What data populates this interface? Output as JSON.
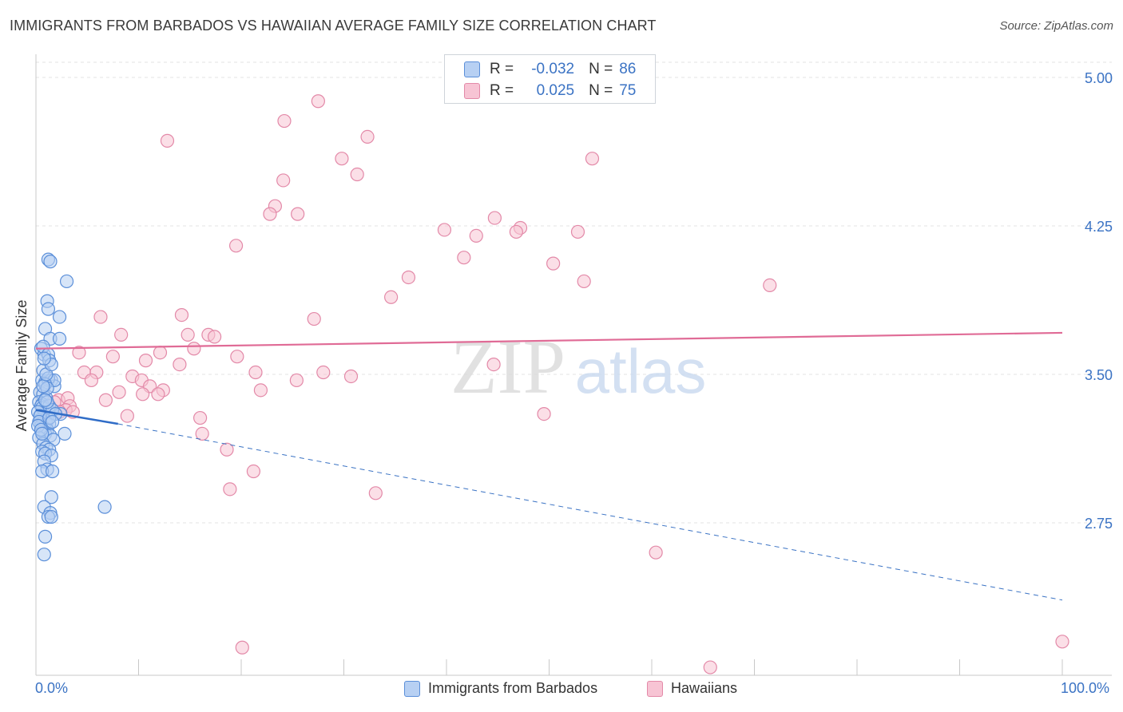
{
  "header": {
    "title": "IMMIGRANTS FROM BARBADOS VS HAWAIIAN AVERAGE FAMILY SIZE CORRELATION CHART",
    "source": "Source: ZipAtlas.com"
  },
  "watermark": {
    "zip": "ZIP",
    "atlas": "atlas"
  },
  "stats": [
    {
      "r_label": "R =",
      "r_value": "-0.032",
      "n_label": "N =",
      "n_value": "86",
      "color": "#5b8fd9",
      "fill": "#b7d0f3"
    },
    {
      "r_label": "R =",
      "r_value": "0.025",
      "n_label": "N =",
      "n_value": "75",
      "color": "#e389a8",
      "fill": "#f7c4d4"
    }
  ],
  "legend": [
    {
      "label": "Immigrants from Barbados",
      "color": "#5b8fd9",
      "fill": "#b7d0f3"
    },
    {
      "label": "Hawaiians",
      "color": "#e389a8",
      "fill": "#f7c4d4"
    }
  ],
  "chart_data": {
    "type": "scatter",
    "title": "IMMIGRANTS FROM BARBADOS VS HAWAIIAN AVERAGE FAMILY SIZE CORRELATION CHART",
    "xlabel": "",
    "ylabel": "Average Family Size",
    "xlim": [
      0,
      100
    ],
    "ylim": [
      2.0,
      5.1
    ],
    "x_tick_labels": [
      "0.0%",
      "100.0%"
    ],
    "y_ticks": [
      2.75,
      3.5,
      4.25,
      5.0
    ],
    "y_tick_labels": [
      "2.75",
      "3.50",
      "4.25",
      "5.00"
    ],
    "grid": "horizontal dashed",
    "legend_position": "bottom",
    "series": [
      {
        "name": "Immigrants from Barbados",
        "color": "#5b8fd9",
        "fill": "#b7d0f3",
        "trend": {
          "solid": [
            [
              0,
              3.32
            ],
            [
              8,
              3.25
            ]
          ],
          "dashed": [
            [
              8,
              3.25
            ],
            [
              100,
              2.36
            ]
          ]
        },
        "points": [
          [
            0.5,
            3.63
          ],
          [
            0.8,
            3.6
          ],
          [
            0.6,
            3.47
          ],
          [
            0.9,
            3.46
          ],
          [
            1.2,
            3.47
          ],
          [
            1.5,
            3.47
          ],
          [
            1.8,
            3.44
          ],
          [
            0.4,
            3.41
          ],
          [
            0.7,
            3.4
          ],
          [
            1.0,
            3.38
          ],
          [
            0.3,
            3.36
          ],
          [
            0.6,
            3.35
          ],
          [
            0.9,
            3.33
          ],
          [
            1.2,
            3.32
          ],
          [
            1.5,
            3.31
          ],
          [
            0.5,
            3.3
          ],
          [
            0.8,
            3.29
          ],
          [
            1.1,
            3.28
          ],
          [
            0.4,
            3.27
          ],
          [
            0.7,
            3.26
          ],
          [
            1.0,
            3.25
          ],
          [
            1.3,
            3.25
          ],
          [
            0.5,
            3.24
          ],
          [
            0.8,
            3.23
          ],
          [
            1.1,
            3.22
          ],
          [
            0.6,
            3.21
          ],
          [
            0.9,
            3.2
          ],
          [
            1.4,
            3.19
          ],
          [
            0.3,
            3.18
          ],
          [
            1.7,
            3.17
          ],
          [
            0.7,
            3.15
          ],
          [
            1.0,
            3.13
          ],
          [
            1.3,
            3.12
          ],
          [
            0.6,
            3.11
          ],
          [
            0.9,
            3.1
          ],
          [
            1.5,
            3.09
          ],
          [
            0.8,
            3.06
          ],
          [
            1.1,
            3.02
          ],
          [
            0.6,
            3.01
          ],
          [
            1.6,
            3.01
          ],
          [
            1.2,
            4.08
          ],
          [
            1.4,
            4.07
          ],
          [
            3.0,
            3.97
          ],
          [
            1.1,
            3.87
          ],
          [
            1.2,
            3.83
          ],
          [
            2.3,
            3.79
          ],
          [
            0.9,
            3.73
          ],
          [
            1.4,
            3.68
          ],
          [
            2.3,
            3.68
          ],
          [
            0.7,
            3.64
          ],
          [
            1.2,
            3.6
          ],
          [
            1.3,
            3.57
          ],
          [
            0.7,
            3.52
          ],
          [
            1.2,
            3.48
          ],
          [
            1.8,
            3.47
          ],
          [
            0.9,
            3.45
          ],
          [
            1.1,
            3.43
          ],
          [
            2.4,
            3.3
          ],
          [
            2.8,
            3.2
          ],
          [
            1.5,
            2.88
          ],
          [
            0.8,
            2.83
          ],
          [
            1.4,
            2.8
          ],
          [
            1.2,
            2.78
          ],
          [
            1.5,
            2.78
          ],
          [
            6.7,
            2.83
          ],
          [
            0.9,
            2.68
          ],
          [
            0.8,
            2.59
          ],
          [
            0.5,
            3.34
          ],
          [
            0.6,
            3.33
          ],
          [
            0.2,
            3.31
          ],
          [
            0.4,
            3.29
          ],
          [
            0.3,
            3.26
          ],
          [
            0.2,
            3.24
          ],
          [
            0.5,
            3.22
          ],
          [
            0.6,
            3.2
          ],
          [
            1.3,
            3.34
          ],
          [
            1.6,
            3.32
          ],
          [
            1.9,
            3.3
          ],
          [
            1.1,
            3.36
          ],
          [
            0.9,
            3.37
          ],
          [
            1.3,
            3.28
          ],
          [
            1.6,
            3.26
          ],
          [
            0.7,
            3.44
          ],
          [
            1.0,
            3.5
          ],
          [
            1.5,
            3.55
          ],
          [
            0.8,
            3.58
          ]
        ]
      },
      {
        "name": "Hawaiians",
        "color": "#e389a8",
        "fill": "#f7c4d4",
        "trend": {
          "solid": [
            [
              0,
              3.63
            ],
            [
              100,
              3.71
            ]
          ]
        },
        "points": [
          [
            27.5,
            4.88
          ],
          [
            24.2,
            4.78
          ],
          [
            32.3,
            4.7
          ],
          [
            12.8,
            4.68
          ],
          [
            29.8,
            4.59
          ],
          [
            54.2,
            4.59
          ],
          [
            24.1,
            4.48
          ],
          [
            31.3,
            4.51
          ],
          [
            23.3,
            4.35
          ],
          [
            22.8,
            4.31
          ],
          [
            25.5,
            4.31
          ],
          [
            44.7,
            4.29
          ],
          [
            39.8,
            4.23
          ],
          [
            47.2,
            4.24
          ],
          [
            46.8,
            4.22
          ],
          [
            52.8,
            4.22
          ],
          [
            19.5,
            4.15
          ],
          [
            42.9,
            4.2
          ],
          [
            41.7,
            4.09
          ],
          [
            50.4,
            4.06
          ],
          [
            36.3,
            3.99
          ],
          [
            53.4,
            3.97
          ],
          [
            71.5,
            3.95
          ],
          [
            34.6,
            3.89
          ],
          [
            14.2,
            3.8
          ],
          [
            6.3,
            3.79
          ],
          [
            27.1,
            3.78
          ],
          [
            8.3,
            3.7
          ],
          [
            14.8,
            3.7
          ],
          [
            16.8,
            3.7
          ],
          [
            17.4,
            3.69
          ],
          [
            15.4,
            3.63
          ],
          [
            4.2,
            3.61
          ],
          [
            12.1,
            3.61
          ],
          [
            7.5,
            3.59
          ],
          [
            10.7,
            3.57
          ],
          [
            19.6,
            3.59
          ],
          [
            14.0,
            3.55
          ],
          [
            44.6,
            3.55
          ],
          [
            4.7,
            3.51
          ],
          [
            5.9,
            3.51
          ],
          [
            21.4,
            3.51
          ],
          [
            28.0,
            3.51
          ],
          [
            9.4,
            3.49
          ],
          [
            30.7,
            3.49
          ],
          [
            10.3,
            3.47
          ],
          [
            25.4,
            3.47
          ],
          [
            5.4,
            3.47
          ],
          [
            11.1,
            3.44
          ],
          [
            8.1,
            3.41
          ],
          [
            21.9,
            3.42
          ],
          [
            12.4,
            3.42
          ],
          [
            10.4,
            3.4
          ],
          [
            11.9,
            3.4
          ],
          [
            2.2,
            3.37
          ],
          [
            6.8,
            3.37
          ],
          [
            3.1,
            3.38
          ],
          [
            1.8,
            3.36
          ],
          [
            3.3,
            3.34
          ],
          [
            1.4,
            3.33
          ],
          [
            2.9,
            3.32
          ],
          [
            8.9,
            3.29
          ],
          [
            16.0,
            3.28
          ],
          [
            3.6,
            3.31
          ],
          [
            49.5,
            3.3
          ],
          [
            16.2,
            3.2
          ],
          [
            18.6,
            3.12
          ],
          [
            21.2,
            3.01
          ],
          [
            18.9,
            2.92
          ],
          [
            33.1,
            2.9
          ],
          [
            60.4,
            2.6
          ],
          [
            20.1,
            2.12
          ],
          [
            65.7,
            2.02
          ],
          [
            100,
            2.15
          ],
          [
            2.3,
            3.31
          ]
        ]
      }
    ]
  }
}
